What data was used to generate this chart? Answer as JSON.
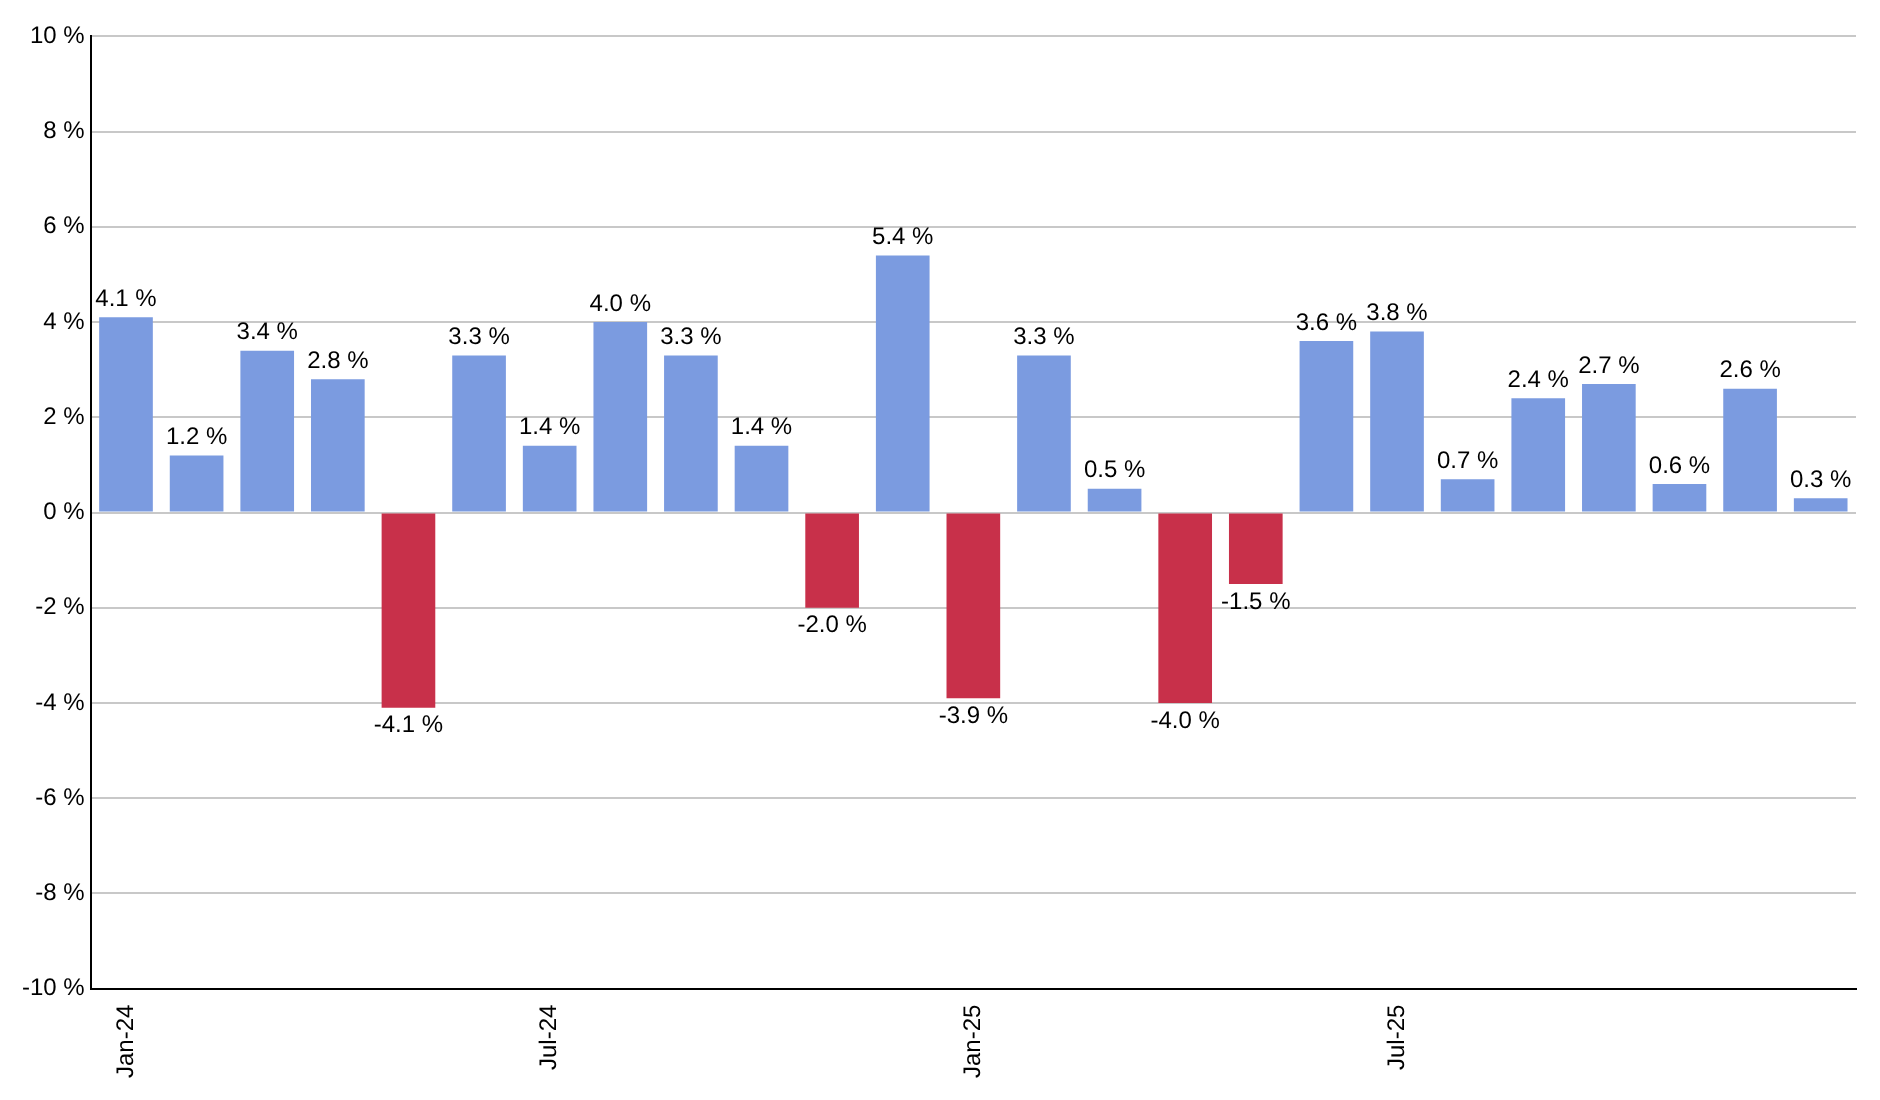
{
  "chart_data": {
    "type": "bar",
    "categories": [
      "Jan-24",
      null,
      null,
      null,
      null,
      null,
      "Jul-24",
      null,
      null,
      null,
      null,
      null,
      "Jan-25",
      null,
      null,
      null,
      null,
      null,
      "Jul-25",
      null,
      null,
      null,
      null,
      null,
      null
    ],
    "values": [
      4.1,
      1.2,
      3.4,
      2.8,
      -4.1,
      3.3,
      1.4,
      4.0,
      3.3,
      1.4,
      -2.0,
      5.4,
      -3.9,
      3.3,
      0.5,
      -4.0,
      -1.5,
      3.6,
      3.8,
      0.7,
      2.4,
      2.7,
      0.6,
      2.6,
      0.3
    ],
    "colors": [
      "#7b9be0",
      "#7b9be0",
      "#7b9be0",
      "#7b9be0",
      "#c8304a",
      "#7b9be0",
      "#7b9be0",
      "#7b9be0",
      "#7b9be0",
      "#7b9be0",
      "#c8304a",
      "#7b9be0",
      "#c8304a",
      "#7b9be0",
      "#7b9be0",
      "#c8304a",
      "#c8304a",
      "#7b9be0",
      "#7b9be0",
      "#7b9be0",
      "#7b9be0",
      "#7b9be0",
      "#7b9be0",
      "#7b9be0",
      "#7b9be0"
    ],
    "value_labels": [
      "4.1 %",
      "1.2 %",
      "3.4 %",
      "2.8 %",
      "-4.1 %",
      "3.3 %",
      "1.4 %",
      "4.0 %",
      "3.3 %",
      "1.4 %",
      "-2.0 %",
      "5.4 %",
      "-3.9 %",
      "3.3 %",
      "0.5 %",
      "-4.0 %",
      "-1.5 %",
      "3.6 %",
      "3.8 %",
      "0.7 %",
      "2.4 %",
      "2.7 %",
      "0.6 %",
      "2.6 %",
      "0.3 %"
    ],
    "ylim": [
      -10,
      10
    ],
    "yticks": [
      {
        "value": -10,
        "label": "-10 %"
      },
      {
        "value": -8,
        "label": "-8 %"
      },
      {
        "value": -6,
        "label": "-6 %"
      },
      {
        "value": -4,
        "label": "-4 %"
      },
      {
        "value": -2,
        "label": "-2 %"
      },
      {
        "value": 0,
        "label": "0 %"
      },
      {
        "value": 2,
        "label": "2 %"
      },
      {
        "value": 4,
        "label": "4 %"
      },
      {
        "value": 6,
        "label": "6 %"
      },
      {
        "value": 8,
        "label": "8 %"
      },
      {
        "value": 10,
        "label": "10 %"
      }
    ],
    "grid": "y",
    "legend": false
  }
}
